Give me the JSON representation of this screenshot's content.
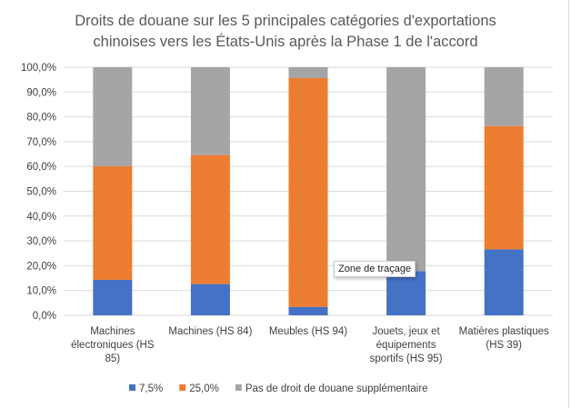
{
  "chart_data": {
    "type": "bar",
    "stacked": true,
    "title": [
      "Droits de douane sur les 5 principales catégories d'exportations",
      "chinoises vers les États-Unis après la Phase 1 de l'accord"
    ],
    "categories": [
      [
        "Machines",
        "électroniques (HS",
        "85)"
      ],
      [
        "Machines (HS 84)"
      ],
      [
        "Meubles (HS 94)"
      ],
      [
        "Jouets, jeux et",
        "équipements",
        "sportifs (HS 95)"
      ],
      [
        "Matières plastiques",
        "(HS 39)"
      ]
    ],
    "series": [
      {
        "name": "7,5%",
        "color": "#4472C4",
        "values": [
          14.3,
          12.6,
          3.4,
          17.8,
          26.6
        ]
      },
      {
        "name": "25,0%",
        "color": "#ED7D31",
        "values": [
          45.8,
          52.0,
          92.2,
          0,
          49.7
        ]
      },
      {
        "name": "Pas de droit de douane supplémentaire",
        "color": "#A5A5A5",
        "values": [
          39.9,
          35.4,
          4.4,
          82.2,
          23.7
        ]
      }
    ],
    "yticks": [
      "0,0%",
      "10,0%",
      "20,0%",
      "30,0%",
      "40,0%",
      "50,0%",
      "60,0%",
      "70,0%",
      "80,0%",
      "90,0%",
      "100,0%"
    ],
    "ylim": [
      0,
      100
    ],
    "grid": true,
    "legend": "bottom",
    "xlabel": "",
    "ylabel": ""
  },
  "tooltip": "Zone de traçage"
}
